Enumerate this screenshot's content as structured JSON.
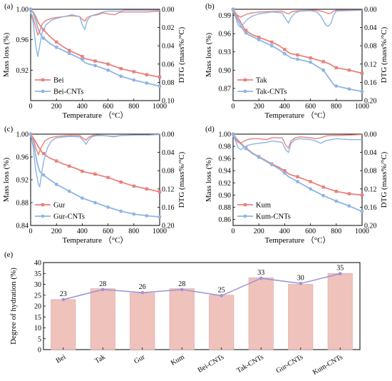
{
  "colors": {
    "red": "#e8827c",
    "blue": "#8fb5e3",
    "bar": "#f0c2bc",
    "barStroke": "#d8a39d",
    "hydLine": "#9a93d8"
  },
  "chart_data": [
    {
      "panel": "(a)",
      "type": "line",
      "xlabel": "Temperature （°C）",
      "ylabel": "Mass loss (%)",
      "y2label": "DTG (mass%/°C)",
      "xlim": [
        0,
        1000
      ],
      "ylim": [
        0.88,
        1.0
      ],
      "y2lim": [
        0.1,
        0.0
      ],
      "y2inverted": true,
      "xticks": [
        "0",
        "200",
        "400",
        "600",
        "800",
        "1000"
      ],
      "yticks": [
        "0.92",
        "0.96",
        "1.00"
      ],
      "y2ticks": [
        "0.00",
        "0.02",
        "0.04",
        "0.06",
        "0.08",
        "0.10"
      ],
      "legend": [
        "Bei",
        "Bei-CNTs"
      ],
      "series": [
        {
          "name": "Bei",
          "role": "mass",
          "color": "red",
          "x": [
            0,
            20,
            40,
            60,
            80,
            100,
            150,
            200,
            250,
            300,
            350,
            400,
            420,
            450,
            500,
            600,
            700,
            800,
            900,
            1000
          ],
          "y": [
            1.0,
            0.996,
            0.99,
            0.982,
            0.977,
            0.973,
            0.964,
            0.957,
            0.951,
            0.946,
            0.942,
            0.938,
            0.935,
            0.934,
            0.932,
            0.928,
            0.922,
            0.918,
            0.914,
            0.911
          ]
        },
        {
          "name": "Bei-CNTs",
          "role": "mass",
          "color": "blue",
          "x": [
            0,
            20,
            40,
            60,
            80,
            100,
            150,
            200,
            250,
            300,
            350,
            400,
            420,
            450,
            500,
            600,
            700,
            800,
            900,
            1000
          ],
          "y": [
            1.0,
            0.995,
            0.985,
            0.973,
            0.966,
            0.962,
            0.955,
            0.95,
            0.946,
            0.942,
            0.938,
            0.934,
            0.93,
            0.928,
            0.926,
            0.92,
            0.912,
            0.907,
            0.903,
            0.899
          ]
        },
        {
          "name": "Bei DTG",
          "role": "dtg",
          "color": "red",
          "x": [
            0,
            20,
            40,
            55,
            70,
            90,
            120,
            160,
            200,
            260,
            320,
            380,
            400,
            420,
            440,
            470,
            520,
            560,
            600,
            650,
            680,
            700,
            720,
            760,
            800,
            900,
            1000
          ],
          "y": [
            0.003,
            0.01,
            0.02,
            0.028,
            0.024,
            0.016,
            0.012,
            0.01,
            0.009,
            0.008,
            0.007,
            0.008,
            0.011,
            0.013,
            0.009,
            0.007,
            0.006,
            0.004,
            0.005,
            0.006,
            0.004,
            0.003,
            0.003,
            0.003,
            0.003,
            0.003,
            0.002
          ]
        },
        {
          "name": "Bei-CNTs DTG",
          "role": "dtg",
          "color": "blue",
          "x": [
            0,
            20,
            40,
            55,
            70,
            90,
            120,
            160,
            200,
            260,
            320,
            380,
            400,
            420,
            440,
            470,
            520,
            560,
            600,
            650,
            680,
            700,
            720,
            760,
            800,
            900,
            1000
          ],
          "y": [
            0.003,
            0.015,
            0.04,
            0.052,
            0.04,
            0.025,
            0.017,
            0.012,
            0.01,
            0.008,
            0.006,
            0.008,
            0.017,
            0.022,
            0.012,
            0.007,
            0.005,
            0.003,
            0.002,
            0.002,
            0.002,
            0.002,
            0.001,
            0.001,
            0.001,
            0.001,
            0.001
          ]
        }
      ]
    },
    {
      "panel": "(b)",
      "type": "line",
      "xlabel": "Temperature （°C）",
      "ylabel": "Mass loss (%)",
      "y2label": "DTG (mass%/°C)",
      "xlim": [
        0,
        1000
      ],
      "ylim": [
        0.85,
        1.0
      ],
      "y2lim": [
        0.2,
        0.0
      ],
      "y2inverted": true,
      "xticks": [
        "0",
        "200",
        "400",
        "600",
        "800",
        "1000"
      ],
      "yticks": [
        "0.87",
        "0.90",
        "0.93",
        "0.96",
        "0.99"
      ],
      "y2ticks": [
        "0.00",
        "0.04",
        "0.08",
        "0.12",
        "0.16",
        "0.20"
      ],
      "legend": [
        "Tak",
        "Tak-CNTs"
      ],
      "series": [
        {
          "name": "Tak",
          "role": "mass",
          "color": "red",
          "x": [
            0,
            30,
            60,
            90,
            120,
            150,
            200,
            250,
            300,
            350,
            400,
            430,
            450,
            500,
            600,
            700,
            750,
            780,
            800,
            900,
            1000
          ],
          "y": [
            1.0,
            0.99,
            0.978,
            0.967,
            0.962,
            0.958,
            0.954,
            0.95,
            0.946,
            0.941,
            0.934,
            0.929,
            0.927,
            0.925,
            0.92,
            0.914,
            0.91,
            0.906,
            0.904,
            0.9,
            0.895
          ]
        },
        {
          "name": "Tak-CNTs",
          "role": "mass",
          "color": "blue",
          "x": [
            0,
            30,
            60,
            90,
            120,
            150,
            200,
            250,
            300,
            350,
            400,
            430,
            450,
            500,
            600,
            700,
            750,
            780,
            800,
            900,
            1000
          ],
          "y": [
            1.0,
            0.985,
            0.972,
            0.963,
            0.958,
            0.955,
            0.95,
            0.945,
            0.94,
            0.934,
            0.927,
            0.923,
            0.92,
            0.918,
            0.913,
            0.9,
            0.885,
            0.876,
            0.874,
            0.869,
            0.865
          ]
        },
        {
          "name": "Tak DTG",
          "role": "dtg",
          "color": "red",
          "x": [
            0,
            20,
            40,
            60,
            80,
            110,
            150,
            200,
            300,
            380,
            410,
            430,
            450,
            480,
            520,
            600,
            650,
            680,
            720,
            740,
            760,
            780,
            800,
            900,
            1000
          ],
          "y": [
            0.005,
            0.01,
            0.014,
            0.017,
            0.014,
            0.01,
            0.008,
            0.006,
            0.005,
            0.004,
            0.008,
            0.01,
            0.006,
            0.004,
            0.003,
            0.002,
            0.002,
            0.004,
            0.007,
            0.01,
            0.008,
            0.004,
            0.002,
            0.002,
            0.002
          ]
        },
        {
          "name": "Tak-CNTs DTG",
          "role": "dtg",
          "color": "blue",
          "x": [
            0,
            20,
            40,
            60,
            80,
            110,
            150,
            200,
            300,
            380,
            410,
            430,
            450,
            480,
            520,
            600,
            650,
            680,
            720,
            740,
            760,
            780,
            800,
            900,
            1000
          ],
          "y": [
            0.005,
            0.018,
            0.035,
            0.04,
            0.032,
            0.022,
            0.015,
            0.01,
            0.006,
            0.008,
            0.022,
            0.03,
            0.018,
            0.008,
            0.004,
            0.003,
            0.006,
            0.015,
            0.035,
            0.037,
            0.03,
            0.012,
            0.004,
            0.003,
            0.002
          ]
        }
      ]
    },
    {
      "panel": "(c)",
      "type": "line",
      "xlabel": "Temperature （°C）",
      "ylabel": "Mass loss (%)",
      "y2label": "DTG (mass%/°C)",
      "xlim": [
        0,
        1000
      ],
      "ylim": [
        0.84,
        1.0
      ],
      "y2lim": [
        0.2,
        0.0
      ],
      "y2inverted": true,
      "xticks": [
        "0",
        "200",
        "400",
        "600",
        "800",
        "1000"
      ],
      "yticks": [
        "0.84",
        "0.88",
        "0.92",
        "0.96",
        "1.00"
      ],
      "y2ticks": [
        "0.00",
        "0.04",
        "0.08",
        "0.12",
        "0.16",
        "0.20"
      ],
      "legend": [
        "Gur",
        "Gur-CNTs"
      ],
      "series": [
        {
          "name": "Gur",
          "role": "mass",
          "color": "red",
          "x": [
            0,
            30,
            60,
            90,
            120,
            150,
            200,
            250,
            300,
            350,
            400,
            450,
            500,
            600,
            700,
            800,
            900,
            1000
          ],
          "y": [
            1.0,
            0.99,
            0.978,
            0.968,
            0.962,
            0.958,
            0.953,
            0.948,
            0.944,
            0.94,
            0.935,
            0.932,
            0.93,
            0.924,
            0.916,
            0.909,
            0.904,
            0.899
          ]
        },
        {
          "name": "Gur-CNTs",
          "role": "mass",
          "color": "blue",
          "x": [
            0,
            30,
            50,
            70,
            90,
            120,
            150,
            200,
            250,
            300,
            350,
            400,
            450,
            500,
            600,
            700,
            800,
            900,
            1000
          ],
          "y": [
            1.0,
            0.975,
            0.95,
            0.935,
            0.93,
            0.925,
            0.92,
            0.912,
            0.906,
            0.9,
            0.894,
            0.888,
            0.884,
            0.88,
            0.872,
            0.865,
            0.86,
            0.857,
            0.855
          ]
        },
        {
          "name": "Gur DTG",
          "role": "dtg",
          "color": "red",
          "x": [
            0,
            20,
            40,
            60,
            80,
            110,
            150,
            200,
            300,
            380,
            410,
            430,
            450,
            480,
            520,
            600,
            640,
            700,
            800,
            900,
            1000
          ],
          "y": [
            0.0,
            0.01,
            0.03,
            0.045,
            0.03,
            0.015,
            0.008,
            0.005,
            0.003,
            0.003,
            0.01,
            0.013,
            0.007,
            0.003,
            0.002,
            0.004,
            0.005,
            0.003,
            0.002,
            0.002,
            0.001
          ]
        },
        {
          "name": "Gur-CNTs DTG",
          "role": "dtg",
          "color": "blue",
          "x": [
            0,
            20,
            40,
            60,
            70,
            80,
            100,
            130,
            160,
            200,
            300,
            380,
            410,
            430,
            450,
            480,
            520,
            600,
            640,
            700,
            800,
            900,
            1000
          ],
          "y": [
            0.0,
            0.03,
            0.08,
            0.11,
            0.115,
            0.095,
            0.06,
            0.03,
            0.015,
            0.008,
            0.005,
            0.006,
            0.015,
            0.022,
            0.012,
            0.005,
            0.003,
            0.004,
            0.006,
            0.003,
            0.002,
            0.002,
            0.001
          ]
        }
      ]
    },
    {
      "panel": "(d)",
      "type": "line",
      "xlabel": "Temperature （°C）",
      "ylabel": "Mass loss (%)",
      "y2label": "DTG (mass%/°C)",
      "xlim": [
        0,
        1000
      ],
      "ylim": [
        0.85,
        1.0
      ],
      "y2lim": [
        0.2,
        0.0
      ],
      "y2inverted": true,
      "xticks": [
        "0",
        "200",
        "400",
        "600",
        "800",
        "1000"
      ],
      "yticks": [
        "0.86",
        "0.88",
        "0.90",
        "0.92",
        "0.94",
        "0.96",
        "0.98",
        "1.00"
      ],
      "y2ticks": [
        "0.00",
        "0.04",
        "0.08",
        "0.12",
        "0.16",
        "0.20"
      ],
      "legend": [
        "Kum",
        "Kum-CNTs"
      ],
      "series": [
        {
          "name": "Kum",
          "role": "mass",
          "color": "red",
          "x": [
            0,
            30,
            60,
            90,
            120,
            150,
            200,
            250,
            300,
            350,
            400,
            430,
            450,
            500,
            600,
            700,
            800,
            900,
            1000
          ],
          "y": [
            1.0,
            0.992,
            0.985,
            0.979,
            0.974,
            0.969,
            0.963,
            0.957,
            0.951,
            0.946,
            0.94,
            0.935,
            0.933,
            0.93,
            0.922,
            0.913,
            0.906,
            0.902,
            0.9
          ]
        },
        {
          "name": "Kum-CNTs",
          "role": "mass",
          "color": "blue",
          "x": [
            0,
            30,
            60,
            90,
            120,
            150,
            200,
            250,
            300,
            350,
            400,
            430,
            450,
            500,
            600,
            700,
            800,
            900,
            1000
          ],
          "y": [
            1.0,
            0.991,
            0.984,
            0.978,
            0.973,
            0.968,
            0.962,
            0.956,
            0.95,
            0.944,
            0.936,
            0.93,
            0.928,
            0.922,
            0.91,
            0.899,
            0.89,
            0.882,
            0.873
          ]
        },
        {
          "name": "Kum DTG",
          "role": "dtg",
          "color": "red",
          "x": [
            0,
            20,
            40,
            60,
            80,
            110,
            150,
            200,
            260,
            300,
            380,
            410,
            430,
            450,
            480,
            520,
            600,
            640,
            680,
            720,
            760,
            800,
            900,
            1000
          ],
          "y": [
            0.004,
            0.012,
            0.018,
            0.02,
            0.016,
            0.012,
            0.01,
            0.01,
            0.012,
            0.008,
            0.008,
            0.025,
            0.03,
            0.015,
            0.008,
            0.006,
            0.008,
            0.01,
            0.008,
            0.004,
            0.003,
            0.003,
            0.002,
            0.001
          ]
        },
        {
          "name": "Kum-CNTs DTG",
          "role": "dtg",
          "color": "blue",
          "x": [
            0,
            20,
            40,
            60,
            80,
            110,
            150,
            200,
            260,
            300,
            380,
            410,
            430,
            450,
            480,
            520,
            600,
            640,
            680,
            720,
            760,
            800,
            900,
            1000
          ],
          "y": [
            0.004,
            0.015,
            0.03,
            0.034,
            0.03,
            0.025,
            0.022,
            0.02,
            0.018,
            0.015,
            0.018,
            0.035,
            0.04,
            0.02,
            0.012,
            0.01,
            0.012,
            0.015,
            0.02,
            0.014,
            0.012,
            0.01,
            0.012,
            0.012
          ]
        }
      ]
    },
    {
      "panel": "(e)",
      "type": "bar",
      "ylabel": "Degree of hydration (%)",
      "ylim": [
        0,
        40
      ],
      "yticks": [
        "0",
        "5",
        "10",
        "15",
        "20",
        "25",
        "30",
        "35",
        "40"
      ],
      "categories": [
        "Bei",
        "Tak",
        "Gur",
        "Kum",
        "Bei-CNTs",
        "Tak-CNTs",
        "Gur-CNTs",
        "Kum-CNTs"
      ],
      "values": [
        23,
        28,
        26,
        28,
        25,
        33,
        30,
        35
      ],
      "labels": [
        "23",
        "28",
        "26",
        "28",
        "25",
        "33",
        "30",
        "35"
      ],
      "line_values": [
        23,
        27.6,
        26.2,
        27.6,
        24.8,
        32.8,
        30.4,
        34.9
      ]
    }
  ]
}
